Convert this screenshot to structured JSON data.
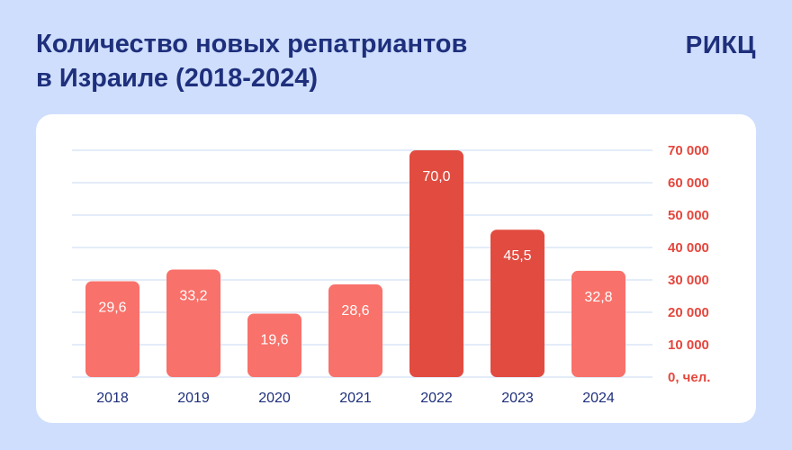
{
  "header": {
    "title_line1": "Количество новых репатриантов",
    "title_line2": "в Израиле (2018-2024)",
    "brand": "РИКЦ"
  },
  "colors": {
    "background": "#cfdefc",
    "title": "#1e2f7c",
    "bar_normal": "#f8716a",
    "bar_highlight": "#e24b40",
    "axis_labels": "#e5473d",
    "grid": "#d4e0f5"
  },
  "chart_data": {
    "type": "bar",
    "title": "Количество новых репатриантов в Израиле (2018-2024)",
    "categories": [
      "2018",
      "2019",
      "2020",
      "2021",
      "2022",
      "2023",
      "2024"
    ],
    "values": [
      29600,
      33200,
      19600,
      28600,
      70000,
      45500,
      32800
    ],
    "data_labels": [
      "29,6",
      "33,2",
      "19,6",
      "28,6",
      "70,0",
      "45,5",
      "32,8"
    ],
    "highlighted": [
      false,
      false,
      false,
      false,
      true,
      true,
      false
    ],
    "yticks": [
      0,
      10000,
      20000,
      30000,
      40000,
      50000,
      60000,
      70000
    ],
    "ytick_labels": [
      "0, чел.",
      "10 000",
      "20 000",
      "30 000",
      "40 000",
      "50 000",
      "60 000",
      "70 000"
    ],
    "ylim": [
      0,
      70000
    ],
    "yaxis_side": "right",
    "grid": true,
    "legend": false
  }
}
